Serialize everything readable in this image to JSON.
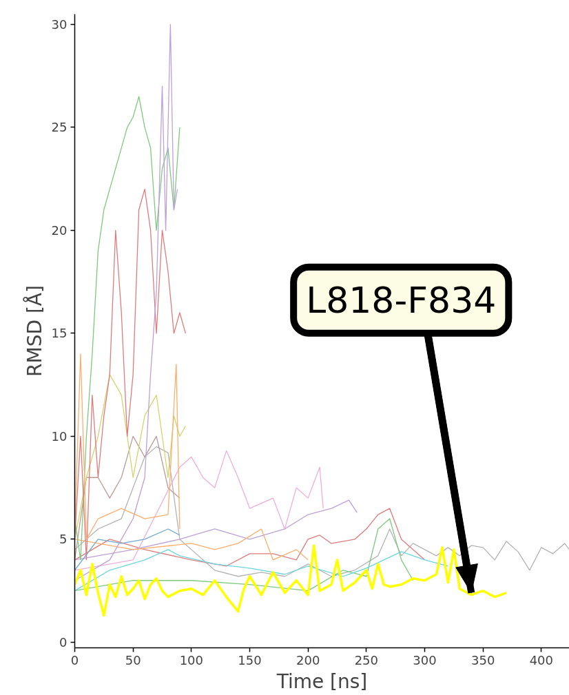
{
  "chart_data": {
    "type": "line",
    "xlabel": "Time [ns]",
    "ylabel": "RMSD [Å]",
    "xlim": [
      0,
      424
    ],
    "ylim": [
      -0.27,
      30.5
    ],
    "xticks": [
      0,
      50,
      100,
      150,
      200,
      250,
      300,
      350,
      400
    ],
    "yticks": [
      0,
      5,
      10,
      15,
      20,
      25,
      30
    ],
    "grid": false,
    "marker": "none",
    "line_style": "solid",
    "annotations": [
      {
        "text": "L818-F834",
        "x": 340,
        "y": 2.4
      }
    ],
    "series": [
      {
        "color": "#b3b3b3",
        "x": [
          0,
          20,
          40,
          60,
          70,
          80,
          90,
          100,
          120,
          140,
          160,
          180,
          200,
          220,
          240,
          260,
          270,
          280,
          290,
          300,
          310,
          320,
          330,
          340,
          350,
          360,
          370,
          380,
          390,
          400,
          410,
          420,
          424
        ],
        "values": [
          4.5,
          5.5,
          6,
          9,
          9.5,
          9.2,
          5,
          4.5,
          3.5,
          3.2,
          3.4,
          3.2,
          3.8,
          3.2,
          3.5,
          4.2,
          5.5,
          4.2,
          4.8,
          4.5,
          4.2,
          4.6,
          4.2,
          4.7,
          4.6,
          4.0,
          4.9,
          4.4,
          3.5,
          4.6,
          4.3,
          4.8,
          4.5
        ]
      },
      {
        "color": "#7fc97f",
        "x": [
          0,
          50,
          100,
          150,
          200,
          230,
          250,
          260,
          270,
          280,
          290
        ],
        "values": [
          2.5,
          3,
          3,
          2.8,
          2.5,
          3.5,
          3.2,
          5.5,
          6,
          4,
          3
        ]
      },
      {
        "color": "#e07b7b",
        "x": [
          0,
          30,
          60,
          100,
          130,
          150,
          170,
          190,
          200,
          210,
          220,
          240,
          250,
          260,
          270,
          280,
          300
        ],
        "values": [
          4,
          5,
          4.5,
          4,
          3.7,
          4.3,
          4.3,
          4,
          5,
          5.2,
          4.8,
          5,
          5.5,
          6.2,
          6.5,
          5,
          4
        ]
      },
      {
        "color": "#bea0d8",
        "x": [
          0,
          50,
          90,
          120,
          150,
          180,
          200,
          220,
          235,
          242
        ],
        "values": [
          4,
          4.5,
          5,
          5.5,
          5,
          5.5,
          6.2,
          6.5,
          6.9,
          6.3
        ]
      },
      {
        "color": "#efaedc",
        "x": [
          0,
          50,
          90,
          100,
          110,
          120,
          130,
          140,
          150,
          170,
          180,
          190,
          200,
          210,
          213
        ],
        "values": [
          3.5,
          4,
          8.5,
          9,
          8,
          7.5,
          9.3,
          8,
          6.5,
          7,
          5.5,
          7.5,
          7,
          8.5,
          6.5
        ]
      },
      {
        "color": "#fdae6b",
        "x": [
          0,
          50,
          100,
          120,
          140,
          160,
          170,
          190,
          200
        ],
        "values": [
          5,
          4.5,
          4.8,
          4.5,
          4.8,
          5.5,
          4,
          4.5,
          4
        ]
      },
      {
        "color": "#bc9a94",
        "x": [
          0,
          10,
          20,
          30,
          40,
          50,
          60,
          70,
          80,
          90
        ],
        "values": [
          4,
          8,
          8,
          7,
          8,
          10,
          9,
          10,
          7.5,
          7
        ]
      },
      {
        "color": "#d4d46e",
        "x": [
          0,
          10,
          20,
          30,
          40,
          50,
          60,
          70,
          80,
          85,
          90,
          95
        ],
        "values": [
          5,
          8,
          10,
          13,
          12,
          8,
          11,
          12,
          8,
          11,
          10,
          10.5
        ]
      },
      {
        "color": "#7fc97f",
        "x": [
          0,
          5,
          10,
          15,
          20,
          25,
          30,
          35,
          40,
          45,
          50,
          55,
          60,
          65,
          70,
          75,
          80,
          85,
          90
        ],
        "values": [
          6,
          4,
          10,
          14,
          19,
          21,
          22,
          23,
          24,
          25,
          25.5,
          26.5,
          25,
          24,
          20,
          23,
          24,
          21,
          25
        ]
      },
      {
        "color": "#e07b7b",
        "x": [
          0,
          5,
          10,
          15,
          20,
          25,
          30,
          35,
          40,
          45,
          50,
          55,
          60,
          65,
          70,
          75,
          80,
          85,
          90,
          95
        ],
        "values": [
          5,
          10,
          4,
          12,
          8,
          11,
          13,
          20,
          16,
          10,
          13,
          21,
          22,
          20,
          15,
          20,
          18,
          15,
          16,
          15
        ]
      },
      {
        "color": "#bea0d8",
        "x": [
          0,
          30,
          50,
          60,
          65,
          70,
          75,
          78,
          82,
          85,
          88
        ],
        "values": [
          3,
          4,
          6,
          8,
          13,
          17,
          27,
          20,
          30,
          21,
          22
        ]
      },
      {
        "color": "#fdae6b",
        "x": [
          0,
          5,
          10,
          20,
          40,
          60,
          80,
          87,
          90
        ],
        "values": [
          5.5,
          14,
          5,
          6,
          6.5,
          6,
          6.2,
          13.5,
          5.5
        ]
      },
      {
        "color": "#74a9cf",
        "x": [
          0,
          20,
          40,
          60,
          80,
          90
        ],
        "values": [
          3.5,
          5,
          4.8,
          5,
          5.5,
          5.2
        ]
      },
      {
        "color": "#6bd6e0",
        "x": [
          0,
          30,
          60,
          80,
          90,
          120,
          150,
          180,
          200,
          230,
          250,
          280,
          300,
          320
        ],
        "values": [
          2.5,
          3.5,
          4,
          4.5,
          4.2,
          3.8,
          3.6,
          3.3,
          3.7,
          3.2,
          3.6,
          4.4,
          4,
          3.7
        ]
      },
      {
        "color": "#ffff00",
        "x": [
          0,
          5,
          10,
          15,
          20,
          25,
          30,
          35,
          40,
          45,
          50,
          55,
          60,
          65,
          70,
          75,
          80,
          90,
          100,
          110,
          120,
          130,
          140,
          145,
          150,
          160,
          170,
          180,
          190,
          200,
          205,
          210,
          220,
          225,
          230,
          240,
          250,
          255,
          260,
          265,
          270,
          280,
          290,
          300,
          310,
          315,
          320,
          325,
          330,
          340,
          350,
          360,
          370
        ],
        "values": [
          2.8,
          3.5,
          2.3,
          3.8,
          2.4,
          1.3,
          2.8,
          2.2,
          3.2,
          2.3,
          2.6,
          3.0,
          2.1,
          2.8,
          3.1,
          2.5,
          2.2,
          2.5,
          2.6,
          2.3,
          3.0,
          2.2,
          1.5,
          2.6,
          3.2,
          2.3,
          3.4,
          2.4,
          3.0,
          2.3,
          4.7,
          2.5,
          2.8,
          4.0,
          2.5,
          2.9,
          3.5,
          2.6,
          3.8,
          2.8,
          2.7,
          2.8,
          3.1,
          3.0,
          3.3,
          4.6,
          2.9,
          4.5,
          2.6,
          2.3,
          2.5,
          2.2,
          2.4
        ]
      }
    ]
  }
}
